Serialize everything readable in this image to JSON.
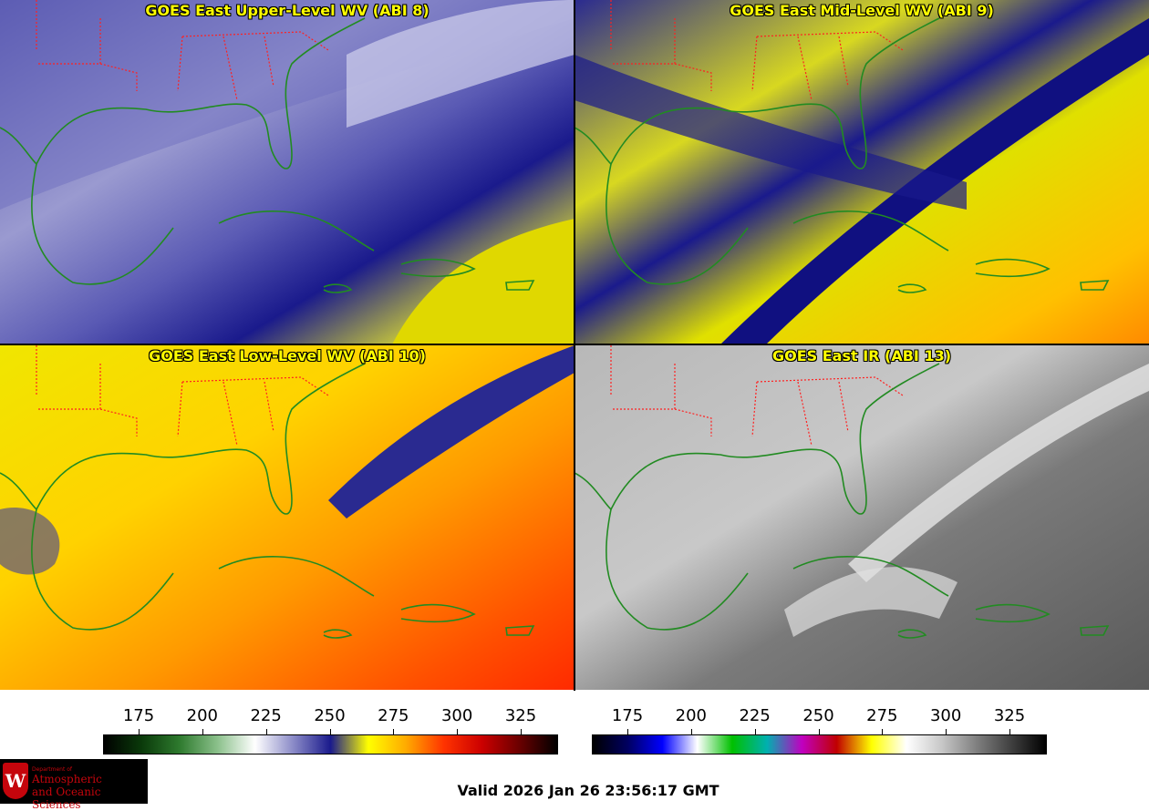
{
  "panels": [
    {
      "id": "p1",
      "title": "GOES East Upper-Level WV (ABI 8)",
      "scheme": "upper"
    },
    {
      "id": "p2",
      "title": "GOES East Mid-Level WV (ABI 9)",
      "scheme": "mid"
    },
    {
      "id": "p3",
      "title": "GOES East Low-Level WV (ABI 10)",
      "scheme": "low"
    },
    {
      "id": "p4",
      "title": "GOES East IR (ABI 13)",
      "scheme": "ir"
    }
  ],
  "colorbars": [
    {
      "name": "wv-colorbar",
      "ticks": [
        "175",
        "200",
        "225",
        "250",
        "275",
        "300",
        "325"
      ],
      "stops": [
        "#000000",
        "#0a3a0a",
        "#2e7a2e",
        "#8ac08a",
        "#ffffff",
        "#8c8cc8",
        "#1a1a8c",
        "#ffff00",
        "#ffaa00",
        "#ff3300",
        "#cc0000",
        "#6a0000",
        "#000000"
      ]
    },
    {
      "name": "ir-colorbar",
      "ticks": [
        "175",
        "200",
        "225",
        "250",
        "275",
        "300",
        "325"
      ],
      "stops": [
        "#000000",
        "#000060",
        "#0000ff",
        "#ffffff",
        "#00c000",
        "#00b0b0",
        "#c000c0",
        "#c00000",
        "#ffff00",
        "#ffffff",
        "#c8c8c8",
        "#808080",
        "#404040",
        "#000000"
      ]
    }
  ],
  "logo": {
    "department": "Department of",
    "line1": "Atmospheric",
    "line2": "and Oceanic Sciences",
    "seal_letter": "W"
  },
  "footer": {
    "valid_text": "Valid 2026 Jan 26 23:56:17 GMT"
  },
  "colors": {
    "title": "#ffff00",
    "state_borders": "#ff2020",
    "coastline": "#228b22"
  }
}
